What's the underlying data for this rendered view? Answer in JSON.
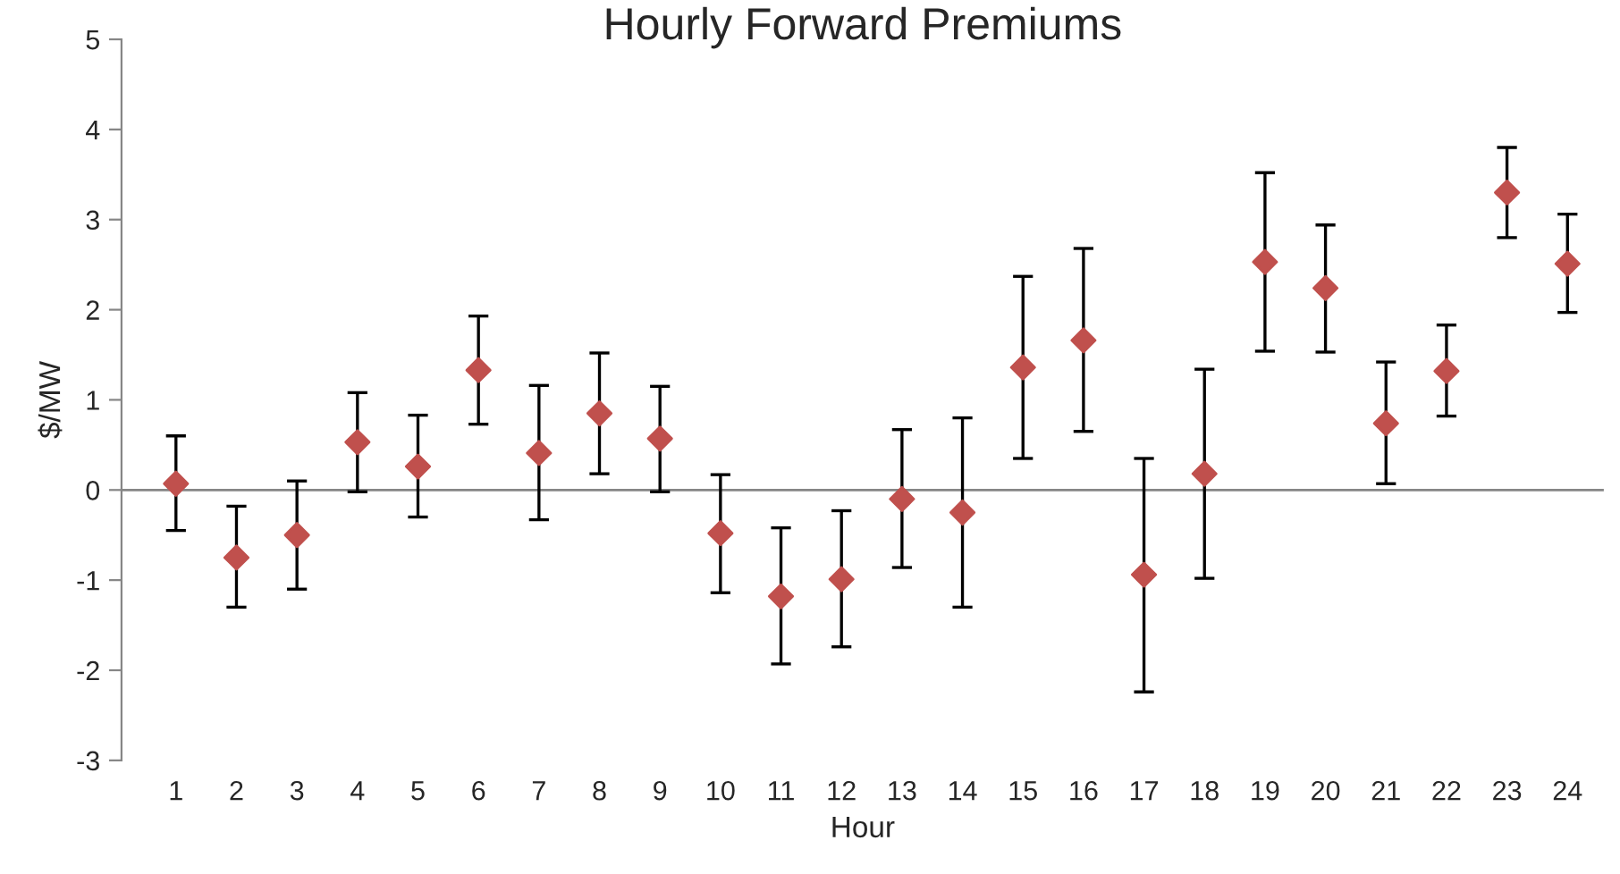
{
  "chart_data": {
    "type": "scatter",
    "title": "Hourly Forward Premiums",
    "xlabel": "Hour",
    "ylabel": "$/MW",
    "categories": [
      "1",
      "2",
      "3",
      "4",
      "5",
      "6",
      "7",
      "8",
      "9",
      "10",
      "11",
      "12",
      "13",
      "14",
      "15",
      "16",
      "17",
      "18",
      "19",
      "20",
      "21",
      "22",
      "23",
      "24"
    ],
    "series": [
      {
        "color": "#c0504d",
        "values": [
          0.07,
          -0.75,
          -0.5,
          0.53,
          0.26,
          1.33,
          0.41,
          0.85,
          0.57,
          -0.48,
          -1.18,
          -0.99,
          -0.1,
          -0.25,
          1.36,
          1.66,
          -0.94,
          0.18,
          2.53,
          2.24,
          0.74,
          1.32,
          3.3,
          2.51
        ],
        "errors": [
          [
            -0.45,
            0.6
          ],
          [
            -1.3,
            -0.18
          ],
          [
            -1.1,
            0.1
          ],
          [
            -0.02,
            1.08
          ],
          [
            -0.3,
            0.83
          ],
          [
            0.73,
            1.93
          ],
          [
            -0.33,
            1.16
          ],
          [
            0.18,
            1.52
          ],
          [
            -0.02,
            1.15
          ],
          [
            -1.14,
            0.17
          ],
          [
            -1.93,
            -0.42
          ],
          [
            -1.74,
            -0.23
          ],
          [
            -0.86,
            0.67
          ],
          [
            -1.3,
            0.8
          ],
          [
            0.35,
            2.37
          ],
          [
            0.65,
            2.68
          ],
          [
            -2.24,
            0.35
          ],
          [
            -0.98,
            1.34
          ],
          [
            1.54,
            3.52
          ],
          [
            1.53,
            2.94
          ],
          [
            0.07,
            1.42
          ],
          [
            0.82,
            1.83
          ],
          [
            2.8,
            3.8
          ],
          [
            1.97,
            3.06
          ]
        ]
      }
    ],
    "ylim": [
      -3,
      5
    ],
    "yticks": [
      -3,
      -2,
      -1,
      0,
      1,
      2,
      3,
      4,
      5
    ],
    "marker": "diamond",
    "grid": false,
    "legend": false,
    "ref_lines": [
      {
        "axis": "y",
        "value": 0,
        "color": "#868686"
      }
    ]
  }
}
